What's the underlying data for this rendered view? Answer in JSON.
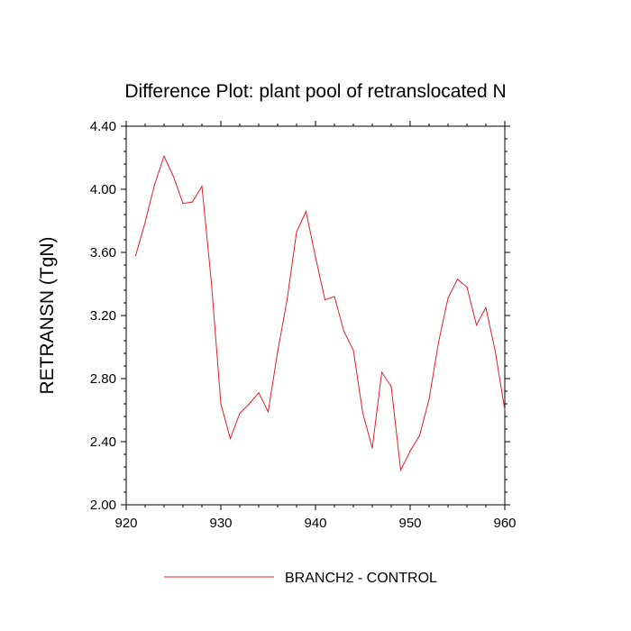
{
  "chart_data": {
    "type": "line",
    "title": "Difference Plot: plant pool of retranslocated N",
    "ylabel": "RETRANSN  (TgN)",
    "xlabel": "",
    "xlim": [
      920,
      960
    ],
    "ylim": [
      2.0,
      4.4
    ],
    "x_ticks": [
      920,
      930,
      940,
      950,
      960
    ],
    "x_tick_labels": [
      "920",
      "930",
      "940",
      "950",
      "960"
    ],
    "y_ticks": [
      2.0,
      2.4,
      2.8,
      3.2,
      3.6,
      4.0,
      4.4
    ],
    "y_tick_labels": [
      "2.00",
      "2.40",
      "2.80",
      "3.20",
      "3.60",
      "4.00",
      "4.40"
    ],
    "grid": false,
    "legend_position": "bottom",
    "series": [
      {
        "name": "BRANCH2 - CONTROL",
        "color": "#e0202a",
        "x": [
          921,
          922,
          923,
          924,
          925,
          926,
          927,
          928,
          929,
          930,
          931,
          932,
          933,
          934,
          935,
          936,
          937,
          938,
          939,
          940,
          941,
          942,
          943,
          944,
          945,
          946,
          947,
          948,
          949,
          950,
          951,
          952,
          953,
          954,
          955,
          956,
          957,
          958,
          959,
          960
        ],
        "values": [
          3.58,
          3.79,
          4.03,
          4.21,
          4.08,
          3.91,
          3.92,
          4.02,
          3.41,
          2.64,
          2.42,
          2.58,
          2.64,
          2.71,
          2.59,
          2.97,
          3.3,
          3.73,
          3.86,
          3.57,
          3.3,
          3.32,
          3.1,
          2.98,
          2.58,
          2.36,
          2.84,
          2.75,
          2.22,
          2.34,
          2.44,
          2.67,
          3.03,
          3.31,
          3.43,
          3.38,
          3.14,
          3.25,
          2.97,
          2.6
        ]
      }
    ]
  }
}
